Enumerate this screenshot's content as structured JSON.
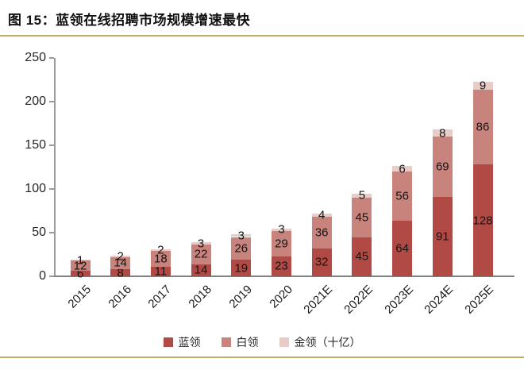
{
  "figure": {
    "title": "图 15：蓝领在线招聘市场规模增速最快"
  },
  "colors": {
    "rule_gold": "#c5ab66",
    "axis": "#9a9a9a",
    "x_axis": "#808080",
    "label_text": "#141414"
  },
  "chart_data": {
    "type": "bar",
    "stacked": true,
    "title": "蓝领在线招聘市场规模增速最快",
    "unit_note": "十亿",
    "categories": [
      "2015",
      "2016",
      "2017",
      "2018",
      "2019",
      "2020",
      "2021E",
      "2022E",
      "2023E",
      "2024E",
      "2025E"
    ],
    "series": [
      {
        "key": "blue-collar",
        "name": "蓝领",
        "color": "#b14a44",
        "values": [
          6,
          8,
          11,
          14,
          19,
          23,
          32,
          45,
          64,
          91,
          128
        ]
      },
      {
        "key": "white-collar",
        "name": "白领",
        "color": "#c9837d",
        "values": [
          12,
          14,
          18,
          22,
          26,
          29,
          36,
          45,
          56,
          69,
          86
        ]
      },
      {
        "key": "gold-collar",
        "name": "金领（十亿）",
        "color": "#e7ccc8",
        "values": [
          1,
          2,
          2,
          3,
          3,
          3,
          4,
          5,
          6,
          8,
          9
        ]
      }
    ],
    "totals": [
      19,
      24,
      31,
      39,
      48,
      55,
      72,
      95,
      126,
      168,
      223
    ],
    "ylim": [
      0,
      250
    ],
    "yticks": [
      0,
      50,
      100,
      150,
      200,
      250
    ],
    "grid": false,
    "legend_position": "bottom",
    "data_labels": true
  }
}
